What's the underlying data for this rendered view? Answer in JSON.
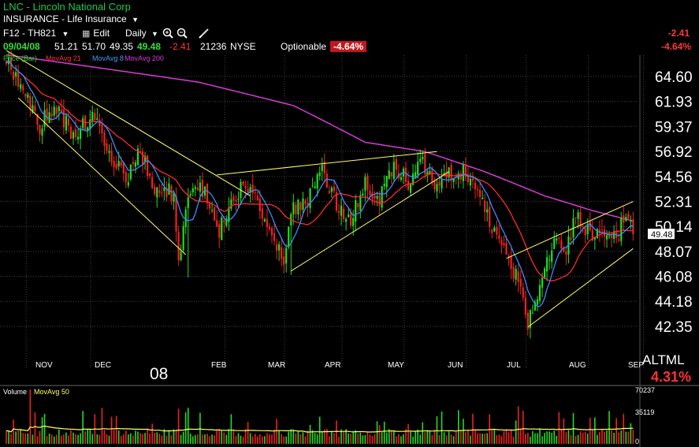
{
  "header": {
    "title": "LNC - Lincoln National Corp",
    "sector": "INSURANCE - Life Insurance",
    "symbol_selector": "F12 - TH821",
    "edit_label": "Edit",
    "interval_label": "Daily",
    "date": "09/04/08",
    "open": "51.21",
    "high": "51.70",
    "low": "49.35",
    "close": "49.48",
    "change": "-2.41",
    "volume": "21236",
    "exchange": "NYSE",
    "optionable": "Optionable",
    "change_pct": "-4.64%",
    "right_change": "-2.41",
    "right_change_pct": "-4.64%"
  },
  "legend": {
    "price_label": "Price (Bar)",
    "ma21": "MovAvg 21",
    "ma8": "MovAvg 8",
    "ma200": "MovAvg 200",
    "volume_label": "Volume",
    "vol_ma": "MovAvg 50"
  },
  "watermark": {
    "altml": "ALTML",
    "pct": "4.31%"
  },
  "year_label": "08",
  "last_price_label": "49.48",
  "colors": {
    "up": "#22dd22",
    "down": "#ee2222",
    "ma21": "#ff2a2a",
    "ma8": "#3a8cff",
    "ma200": "#d63cd6",
    "trend": "#ffff66",
    "grid": "#444444"
  },
  "chart_data": {
    "type": "candlestick",
    "y_axis_ticks": [
      64.6,
      61.93,
      59.37,
      56.92,
      54.56,
      52.31,
      50.14,
      48.07,
      46.08,
      44.18,
      42.35
    ],
    "y_axis_labels": [
      "64.60",
      "61.93",
      "59.37",
      "56.92",
      "54.56",
      "52.31",
      "50.14",
      "48.07",
      "46.08",
      "44.18",
      "42.35"
    ],
    "y_scale": "log",
    "x_axis_labels": [
      "NOV",
      "DEC",
      "FEB",
      "MAR",
      "APR",
      "MAY",
      "JUN",
      "JUL",
      "AUG",
      "SEP"
    ],
    "volume_axis_labels": [
      "70237",
      "35119",
      "0"
    ],
    "anchors": [
      [
        0,
        66.5
      ],
      [
        8,
        63
      ],
      [
        14,
        59.5
      ],
      [
        20,
        61.5
      ],
      [
        28,
        58.5
      ],
      [
        36,
        60.5
      ],
      [
        44,
        56.5
      ],
      [
        50,
        54
      ],
      [
        56,
        57
      ],
      [
        62,
        53.5
      ],
      [
        70,
        53
      ],
      [
        72,
        47
      ],
      [
        76,
        52.5
      ],
      [
        82,
        53.5
      ],
      [
        88,
        49.5
      ],
      [
        94,
        52
      ],
      [
        100,
        54
      ],
      [
        106,
        52
      ],
      [
        112,
        49
      ],
      [
        116,
        47.5
      ],
      [
        120,
        51.5
      ],
      [
        126,
        52.5
      ],
      [
        132,
        55
      ],
      [
        138,
        52
      ],
      [
        144,
        50.5
      ],
      [
        150,
        54
      ],
      [
        156,
        52.5
      ],
      [
        162,
        55.5
      ],
      [
        168,
        54
      ],
      [
        174,
        55.8
      ],
      [
        180,
        53.5
      ],
      [
        186,
        54.8
      ],
      [
        192,
        55
      ],
      [
        198,
        52.5
      ],
      [
        204,
        49.5
      ],
      [
        210,
        47.5
      ],
      [
        214,
        45.5
      ],
      [
        218,
        42.5
      ],
      [
        222,
        44.5
      ],
      [
        226,
        47
      ],
      [
        230,
        49.5
      ],
      [
        234,
        48
      ],
      [
        238,
        51
      ],
      [
        244,
        49.5
      ],
      [
        250,
        50
      ],
      [
        255,
        49
      ],
      [
        259,
        51.5
      ],
      [
        262,
        49.48
      ]
    ],
    "ma200_anchors": [
      [
        0,
        67
      ],
      [
        40,
        65.5
      ],
      [
        80,
        64
      ],
      [
        120,
        61.5
      ],
      [
        150,
        57.8
      ],
      [
        175,
        56.9
      ],
      [
        200,
        55
      ],
      [
        225,
        52.8
      ],
      [
        245,
        51.5
      ],
      [
        262,
        50.6
      ]
    ],
    "trendlines": [
      [
        [
          0,
          67.5
        ],
        [
          102,
          52.8
        ]
      ],
      [
        [
          5,
          62.3
        ],
        [
          75,
          47.8
        ]
      ],
      [
        [
          88,
          54.7
        ],
        [
          180,
          56.9
        ]
      ],
      [
        [
          119,
          46.5
        ],
        [
          185,
          55
        ]
      ],
      [
        [
          209,
          47.5
        ],
        [
          262,
          52.3
        ]
      ],
      [
        [
          218,
          42.3
        ],
        [
          262,
          48.3
        ]
      ]
    ],
    "last_price": 49.48
  }
}
